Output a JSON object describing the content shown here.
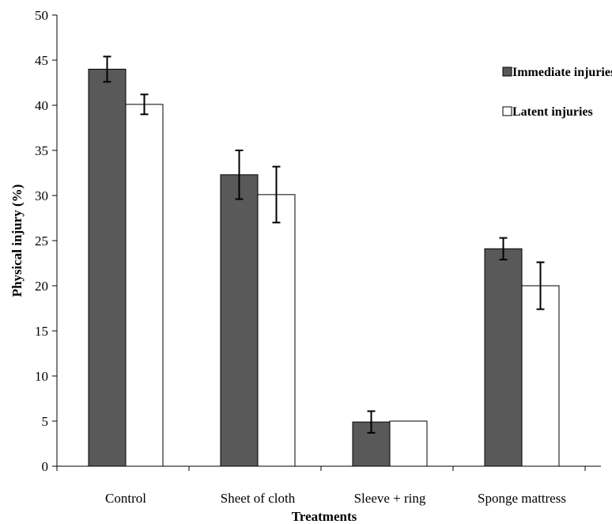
{
  "chart_data": {
    "type": "bar",
    "categories": [
      "Control",
      "Sheet of cloth",
      "Sleeve + ring",
      "Sponge mattress"
    ],
    "series": [
      {
        "name": "Immediate injuries",
        "values": [
          44.0,
          32.3,
          4.9,
          24.1
        ],
        "errors": [
          1.4,
          2.7,
          1.2,
          1.2
        ],
        "color": "#595959"
      },
      {
        "name": "Latent injuries",
        "values": [
          40.1,
          30.1,
          5.0,
          20.0
        ],
        "errors": [
          1.1,
          3.1,
          0.0,
          2.6
        ],
        "color": "#ffffff"
      }
    ],
    "xlabel": "Treatments",
    "ylabel": "Physical injury (%)",
    "ylim": [
      0,
      50
    ],
    "yticks": [
      0,
      5,
      10,
      15,
      20,
      25,
      30,
      35,
      40,
      45,
      50
    ],
    "grid": false,
    "legend_position": "top-right"
  }
}
